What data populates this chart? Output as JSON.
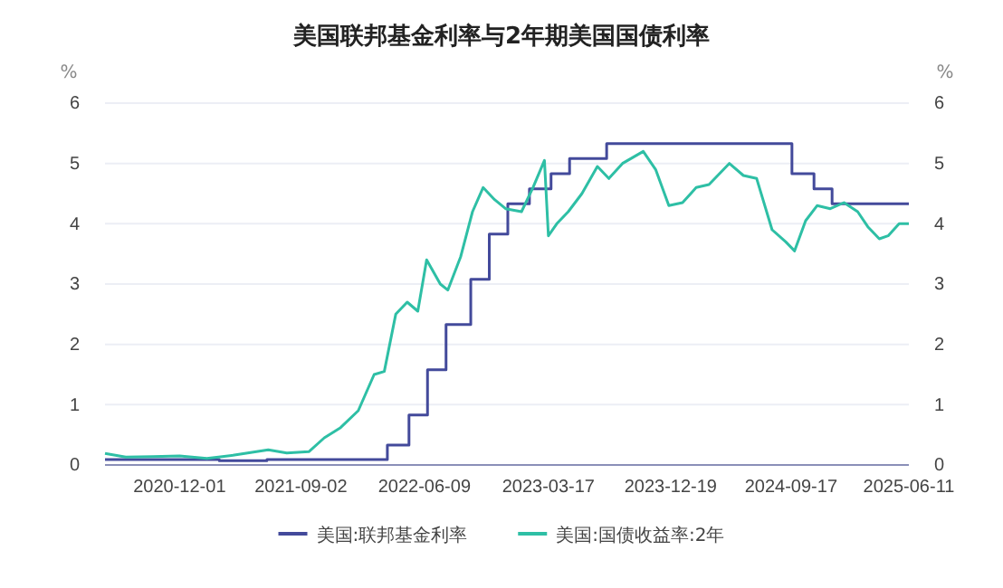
{
  "chart_data": {
    "type": "line",
    "title": "美国联邦基金利率与2年期美国国债利率",
    "ylabel": "%",
    "y2label": "%",
    "xlim": [
      "2020-06-15",
      "2025-06-11"
    ],
    "xticks": [
      {
        "value": "2020-12-01",
        "label": "2020-12-01"
      },
      {
        "value": "2021-09-02",
        "label": "2021-09-02"
      },
      {
        "value": "2022-06-09",
        "label": "2022-06-09"
      },
      {
        "value": "2023-03-17",
        "label": "2023-03-17"
      },
      {
        "value": "2023-12-19",
        "label": "2023-12-19"
      },
      {
        "value": "2024-09-17",
        "label": "2024-09-17"
      },
      {
        "value": "2025-06-11",
        "label": "2025-06-11"
      }
    ],
    "ylim": [
      0,
      6
    ],
    "yticks": [
      0,
      1,
      2,
      3,
      4,
      5,
      6
    ],
    "y2lim": [
      0,
      6
    ],
    "y2ticks": [
      0,
      1,
      2,
      3,
      4,
      5,
      6
    ],
    "grid": "y",
    "legend": "bottom",
    "marker": "none",
    "line_style": "solid",
    "series": [
      {
        "name": "美国:联邦基金利率",
        "type": "step",
        "color": "#434a9b",
        "x": [
          "2020-06-15",
          "2021-03-01",
          "2021-06-17",
          "2022-03-17",
          "2022-05-05",
          "2022-06-16",
          "2022-07-28",
          "2022-09-22",
          "2022-11-03",
          "2022-12-15",
          "2023-02-02",
          "2023-03-23",
          "2023-05-04",
          "2023-07-27",
          "2024-09-19",
          "2024-11-08",
          "2024-12-19",
          "2025-06-11"
        ],
        "values": [
          0.09,
          0.07,
          0.09,
          0.33,
          0.83,
          1.58,
          2.33,
          3.08,
          3.83,
          4.33,
          4.58,
          4.83,
          5.08,
          5.33,
          4.83,
          4.58,
          4.33,
          4.33
        ]
      },
      {
        "name": "美国:国债收益率:2年",
        "color": "#2ebfa5",
        "x": [
          "2020-06-15",
          "2020-08-01",
          "2020-10-01",
          "2020-12-01",
          "2021-02-01",
          "2021-04-01",
          "2021-06-20",
          "2021-08-01",
          "2021-09-20",
          "2021-10-25",
          "2021-12-01",
          "2022-01-10",
          "2022-02-15",
          "2022-03-10",
          "2022-04-05",
          "2022-05-01",
          "2022-05-25",
          "2022-06-14",
          "2022-07-15",
          "2022-08-01",
          "2022-08-30",
          "2022-09-26",
          "2022-10-20",
          "2022-11-15",
          "2022-12-10",
          "2023-01-15",
          "2023-02-10",
          "2023-03-08",
          "2023-03-17",
          "2023-04-05",
          "2023-05-01",
          "2023-06-01",
          "2023-07-06",
          "2023-08-01",
          "2023-09-01",
          "2023-10-18",
          "2023-11-15",
          "2023-12-15",
          "2024-01-15",
          "2024-02-15",
          "2024-03-15",
          "2024-04-30",
          "2024-06-01",
          "2024-07-01",
          "2024-08-05",
          "2024-09-05",
          "2024-09-25",
          "2024-10-20",
          "2024-11-15",
          "2024-12-15",
          "2025-01-15",
          "2025-02-15",
          "2025-03-10",
          "2025-04-05",
          "2025-04-25",
          "2025-05-20",
          "2025-06-11"
        ],
        "values": [
          0.19,
          0.13,
          0.14,
          0.15,
          0.11,
          0.16,
          0.25,
          0.2,
          0.22,
          0.45,
          0.62,
          0.9,
          1.5,
          1.55,
          2.5,
          2.7,
          2.55,
          3.4,
          3.0,
          2.9,
          3.45,
          4.2,
          4.6,
          4.4,
          4.25,
          4.2,
          4.6,
          5.05,
          3.8,
          4.0,
          4.2,
          4.5,
          4.95,
          4.75,
          5.0,
          5.2,
          4.9,
          4.3,
          4.35,
          4.6,
          4.65,
          5.0,
          4.8,
          4.75,
          3.9,
          3.7,
          3.55,
          4.05,
          4.3,
          4.25,
          4.35,
          4.2,
          3.95,
          3.75,
          3.8,
          4.0,
          4.0
        ]
      }
    ]
  }
}
